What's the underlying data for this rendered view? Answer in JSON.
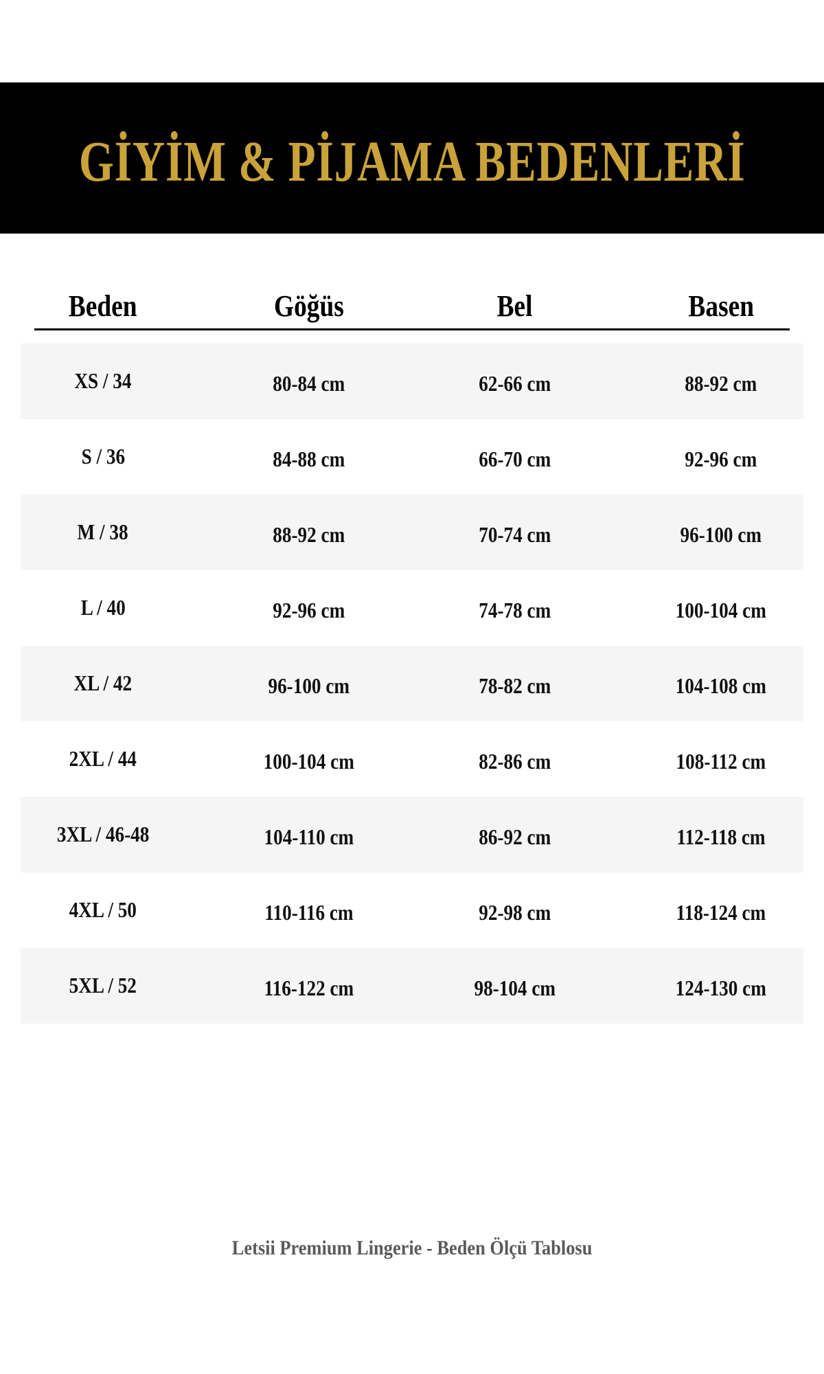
{
  "title": "GİYİM & PİJAMA BEDENLERİ",
  "colors": {
    "banner_bg": "#000000",
    "title_gold": "#c9a23a",
    "row_stripe": "#f5f5f5",
    "footer_text": "#5a5a5a"
  },
  "table": {
    "headers": [
      "Beden",
      "Göğüs",
      "Bel",
      "Basen"
    ],
    "rows": [
      {
        "size": "XS / 34",
        "gogus": "80-84 cm",
        "bel": "62-66 cm",
        "basen": "88-92 cm"
      },
      {
        "size": "S / 36",
        "gogus": "84-88 cm",
        "bel": "66-70 cm",
        "basen": "92-96 cm"
      },
      {
        "size": "M / 38",
        "gogus": "88-92 cm",
        "bel": "70-74 cm",
        "basen": "96-100 cm"
      },
      {
        "size": "L / 40",
        "gogus": "92-96 cm",
        "bel": "74-78 cm",
        "basen": "100-104 cm"
      },
      {
        "size": "XL / 42",
        "gogus": "96-100 cm",
        "bel": "78-82 cm",
        "basen": "104-108 cm"
      },
      {
        "size": "2XL / 44",
        "gogus": "100-104 cm",
        "bel": "82-86 cm",
        "basen": "108-112 cm"
      },
      {
        "size": "3XL / 46-48",
        "gogus": "104-110 cm",
        "bel": "86-92 cm",
        "basen": "112-118 cm"
      },
      {
        "size": "4XL / 50",
        "gogus": "110-116 cm",
        "bel": "92-98 cm",
        "basen": "118-124 cm"
      },
      {
        "size": "5XL / 52",
        "gogus": "116-122 cm",
        "bel": "98-104 cm",
        "basen": "124-130 cm"
      }
    ]
  },
  "footer": "Letsii Premium Lingerie - Beden Ölçü Tablosu"
}
